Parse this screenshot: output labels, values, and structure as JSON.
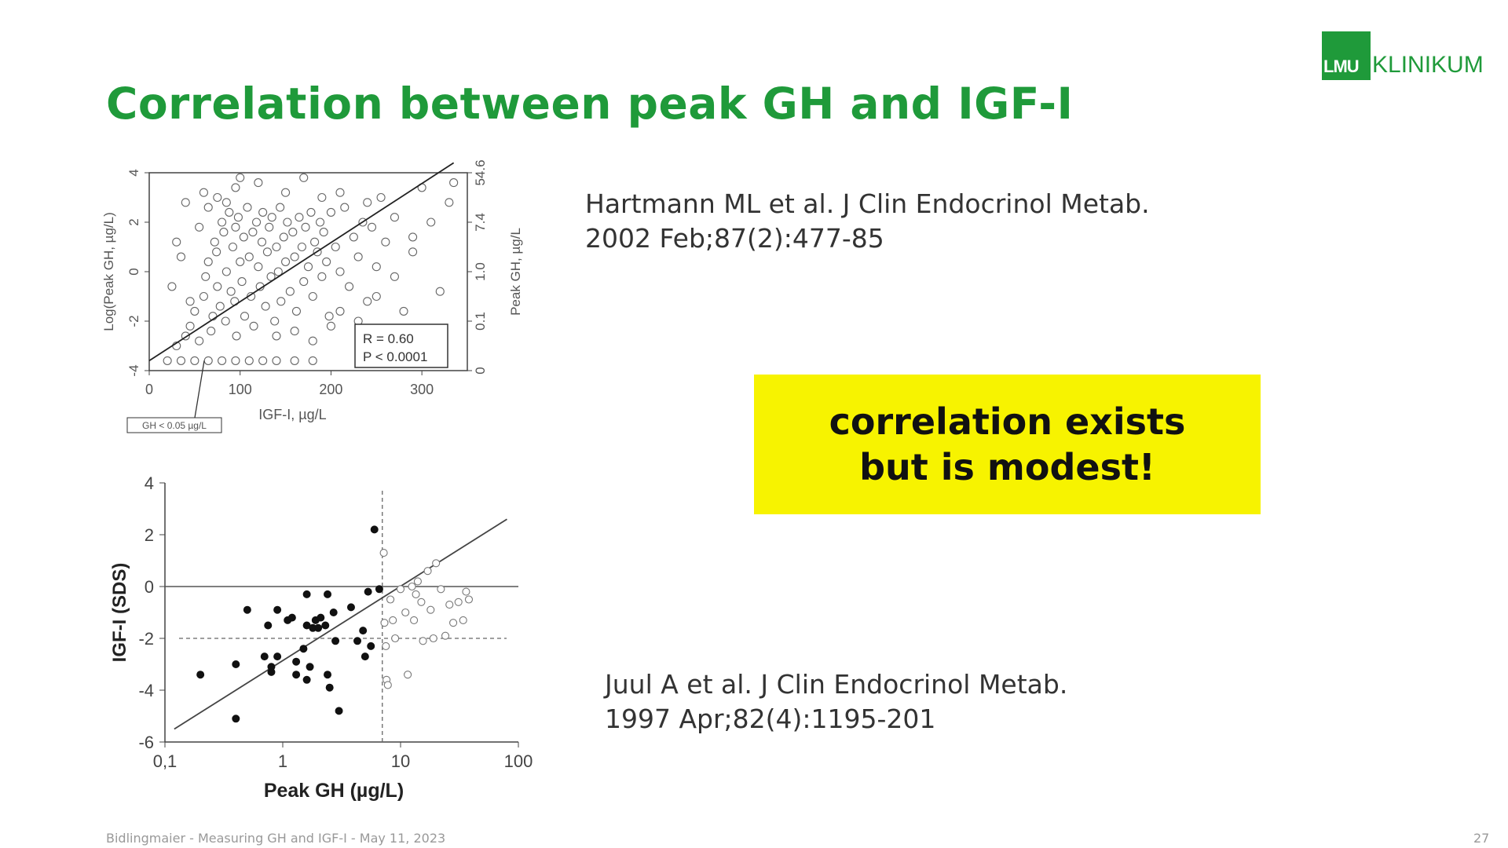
{
  "slide": {
    "title": "Correlation between peak GH and IGF-I",
    "logo": {
      "box_text": "LMU",
      "text": "KLINIKUM"
    },
    "reference_1": {
      "line1": "Hartmann ML et al. J Clin Endocrinol Metab.",
      "line2": "2002 Feb;87(2):477-85"
    },
    "reference_2": {
      "line1": "Juul A et al. J Clin Endocrinol Metab.",
      "line2": "1997 Apr;82(4):1195-201"
    },
    "callout": "correlation exists\nbut is modest!",
    "footer": "Bidlingmaier - Measuring GH and IGF-I - May 11, 2023",
    "page_number": "27",
    "colors": {
      "title_green": "#1f9a3a",
      "callout_yellow": "#f7f300"
    }
  },
  "chart_data": [
    {
      "type": "scatter",
      "xlabel": "IGF-I, µg/L",
      "ylabel": "Log(Peak GH, µg/L)",
      "y2label": "Peak GH, µg/L",
      "xlim": [
        0,
        350
      ],
      "ylim": [
        -4,
        4
      ],
      "xticks": [
        "0",
        "100",
        "200",
        "300"
      ],
      "yticks": [
        "-4",
        "-2",
        "0",
        "2",
        "4"
      ],
      "y2ticks": [
        "0",
        "0.1",
        "1.0",
        "7.4",
        "54.6"
      ],
      "stats": {
        "r": "R = 0.60",
        "p": "P < 0.0001"
      },
      "annotation": "GH < 0.05 µg/L",
      "regression": {
        "x": [
          0,
          335
        ],
        "y": [
          -3.6,
          4.4
        ]
      },
      "points": [
        [
          20,
          -3.6
        ],
        [
          35,
          -3.6
        ],
        [
          50,
          -3.6
        ],
        [
          65,
          -3.6
        ],
        [
          80,
          -3.6
        ],
        [
          95,
          -3.6
        ],
        [
          110,
          -3.6
        ],
        [
          125,
          -3.6
        ],
        [
          140,
          -3.6
        ],
        [
          160,
          -3.6
        ],
        [
          180,
          -3.6
        ],
        [
          30,
          -3.0
        ],
        [
          40,
          -2.6
        ],
        [
          45,
          -2.2
        ],
        [
          50,
          -1.6
        ],
        [
          55,
          -2.8
        ],
        [
          60,
          -1.0
        ],
        [
          62,
          -0.2
        ],
        [
          65,
          0.4
        ],
        [
          68,
          -2.4
        ],
        [
          70,
          -1.8
        ],
        [
          72,
          1.2
        ],
        [
          74,
          0.8
        ],
        [
          75,
          -0.6
        ],
        [
          78,
          -1.4
        ],
        [
          80,
          2.0
        ],
        [
          82,
          1.6
        ],
        [
          84,
          -2.0
        ],
        [
          85,
          0.0
        ],
        [
          88,
          2.4
        ],
        [
          90,
          -0.8
        ],
        [
          92,
          1.0
        ],
        [
          94,
          -1.2
        ],
        [
          95,
          1.8
        ],
        [
          96,
          -2.6
        ],
        [
          98,
          2.2
        ],
        [
          100,
          0.4
        ],
        [
          102,
          -0.4
        ],
        [
          104,
          1.4
        ],
        [
          105,
          -1.8
        ],
        [
          108,
          2.6
        ],
        [
          110,
          0.6
        ],
        [
          112,
          -1.0
        ],
        [
          114,
          1.6
        ],
        [
          115,
          -2.2
        ],
        [
          118,
          2.0
        ],
        [
          120,
          0.2
        ],
        [
          122,
          -0.6
        ],
        [
          124,
          1.2
        ],
        [
          125,
          2.4
        ],
        [
          128,
          -1.4
        ],
        [
          130,
          0.8
        ],
        [
          132,
          1.8
        ],
        [
          134,
          -0.2
        ],
        [
          135,
          2.2
        ],
        [
          138,
          -2.0
        ],
        [
          140,
          1.0
        ],
        [
          142,
          0.0
        ],
        [
          144,
          2.6
        ],
        [
          145,
          -1.2
        ],
        [
          148,
          1.4
        ],
        [
          150,
          0.4
        ],
        [
          152,
          2.0
        ],
        [
          155,
          -0.8
        ],
        [
          158,
          1.6
        ],
        [
          160,
          0.6
        ],
        [
          162,
          -1.6
        ],
        [
          165,
          2.2
        ],
        [
          168,
          1.0
        ],
        [
          170,
          -0.4
        ],
        [
          172,
          1.8
        ],
        [
          175,
          0.2
        ],
        [
          178,
          2.4
        ],
        [
          180,
          -1.0
        ],
        [
          182,
          1.2
        ],
        [
          185,
          0.8
        ],
        [
          188,
          2.0
        ],
        [
          190,
          -0.2
        ],
        [
          192,
          1.6
        ],
        [
          195,
          0.4
        ],
        [
          198,
          -1.8
        ],
        [
          200,
          2.4
        ],
        [
          205,
          1.0
        ],
        [
          210,
          0.0
        ],
        [
          215,
          2.6
        ],
        [
          220,
          -0.6
        ],
        [
          225,
          1.4
        ],
        [
          230,
          0.6
        ],
        [
          235,
          2.0
        ],
        [
          240,
          -1.2
        ],
        [
          245,
          1.8
        ],
        [
          250,
          0.2
        ],
        [
          255,
          3.0
        ],
        [
          260,
          1.2
        ],
        [
          270,
          2.2
        ],
        [
          280,
          -1.6
        ],
        [
          290,
          0.8
        ],
        [
          300,
          3.4
        ],
        [
          310,
          2.0
        ],
        [
          320,
          -0.8
        ],
        [
          330,
          2.8
        ],
        [
          335,
          3.6
        ],
        [
          150,
          3.2
        ],
        [
          170,
          3.8
        ],
        [
          120,
          3.6
        ],
        [
          100,
          3.8
        ],
        [
          60,
          3.2
        ],
        [
          40,
          2.8
        ],
        [
          30,
          1.2
        ],
        [
          25,
          -0.6
        ],
        [
          35,
          0.6
        ],
        [
          45,
          -1.2
        ],
        [
          55,
          1.8
        ],
        [
          65,
          2.6
        ],
        [
          75,
          3.0
        ],
        [
          85,
          2.8
        ],
        [
          95,
          3.4
        ],
        [
          140,
          -2.6
        ],
        [
          160,
          -2.4
        ],
        [
          180,
          -2.8
        ],
        [
          200,
          -2.2
        ],
        [
          210,
          -1.6
        ],
        [
          230,
          -2.0
        ],
        [
          250,
          -1.0
        ],
        [
          270,
          -0.2
        ],
        [
          290,
          1.4
        ],
        [
          240,
          2.8
        ],
        [
          210,
          3.2
        ],
        [
          190,
          3.0
        ]
      ]
    },
    {
      "type": "scatter",
      "xlabel": "Peak GH (µg/L)",
      "ylabel": "IGF-I (SDS)",
      "xscale": "log",
      "xlim": [
        0.1,
        100
      ],
      "ylim": [
        -6,
        4
      ],
      "xticks": [
        "0,1",
        "1",
        "10",
        "100"
      ],
      "yticks": [
        "-6",
        "-4",
        "-2",
        "0",
        "2",
        "4"
      ],
      "reference_lines": {
        "x": 7,
        "y": [
          0,
          -2
        ]
      },
      "regression": {
        "x": [
          0.12,
          80
        ],
        "y": [
          -5.5,
          2.6
        ]
      },
      "series": [
        {
          "marker": "filled",
          "points": [
            [
              0.2,
              -3.4
            ],
            [
              0.4,
              -3.0
            ],
            [
              0.4,
              -5.1
            ],
            [
              0.5,
              -0.9
            ],
            [
              0.7,
              -2.7
            ],
            [
              0.75,
              -1.5
            ],
            [
              0.8,
              -3.3
            ],
            [
              0.8,
              -3.1
            ],
            [
              0.9,
              -0.9
            ],
            [
              0.9,
              -2.7
            ],
            [
              1.1,
              -1.3
            ],
            [
              1.2,
              -1.2
            ],
            [
              1.3,
              -2.9
            ],
            [
              1.3,
              -3.4
            ],
            [
              1.5,
              -2.4
            ],
            [
              1.6,
              -0.3
            ],
            [
              1.6,
              -1.5
            ],
            [
              1.6,
              -3.6
            ],
            [
              1.7,
              -3.1
            ],
            [
              1.8,
              -1.6
            ],
            [
              1.9,
              -1.3
            ],
            [
              2.0,
              -1.6
            ],
            [
              2.1,
              -1.2
            ],
            [
              2.3,
              -1.5
            ],
            [
              2.4,
              -0.3
            ],
            [
              2.4,
              -3.4
            ],
            [
              2.5,
              -3.9
            ],
            [
              2.7,
              -1.0
            ],
            [
              2.8,
              -2.1
            ],
            [
              3.0,
              -4.8
            ],
            [
              3.8,
              -0.8
            ],
            [
              4.3,
              -2.1
            ],
            [
              4.8,
              -1.7
            ],
            [
              5.0,
              -2.7
            ],
            [
              5.3,
              -0.2
            ],
            [
              5.6,
              -2.3
            ],
            [
              6.0,
              2.2
            ],
            [
              6.6,
              -0.1
            ]
          ]
        },
        {
          "marker": "open",
          "points": [
            [
              7.2,
              1.3
            ],
            [
              7.3,
              -1.4
            ],
            [
              7.5,
              -2.3
            ],
            [
              7.6,
              -3.6
            ],
            [
              7.8,
              -3.8
            ],
            [
              8.2,
              -0.5
            ],
            [
              8.6,
              -1.3
            ],
            [
              9.0,
              -2.0
            ],
            [
              10.0,
              -0.1
            ],
            [
              11.0,
              -1.0
            ],
            [
              11.5,
              -3.4
            ],
            [
              12.5,
              0.0
            ],
            [
              13.0,
              -1.3
            ],
            [
              13.5,
              -0.3
            ],
            [
              14.0,
              0.2
            ],
            [
              15.0,
              -0.6
            ],
            [
              15.5,
              -2.1
            ],
            [
              17.0,
              0.6
            ],
            [
              18.0,
              -0.9
            ],
            [
              19.0,
              -2.0
            ],
            [
              20.0,
              0.9
            ],
            [
              22.0,
              -0.1
            ],
            [
              24.0,
              -1.9
            ],
            [
              26.0,
              -0.7
            ],
            [
              28.0,
              -1.4
            ],
            [
              31.0,
              -0.6
            ],
            [
              34.0,
              -1.3
            ],
            [
              36.0,
              -0.2
            ],
            [
              38.0,
              -0.5
            ]
          ]
        }
      ]
    }
  ]
}
